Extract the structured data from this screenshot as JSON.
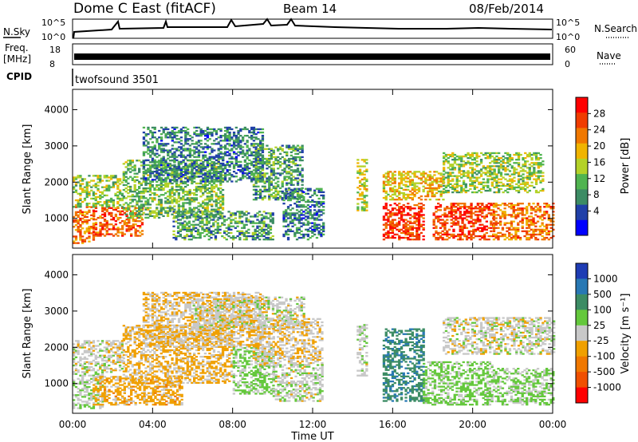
{
  "header": {
    "station": "Dome C East (fitACF)",
    "beam": "Beam 14",
    "date": "08/Feb/2014"
  },
  "strip": {
    "nsky_label": "N.Sky",
    "nsky_ticks": [
      "10^5",
      "10^0"
    ],
    "nsearch_label": "N.Search",
    "nsearch_ticks": [
      "10^5",
      "10^0"
    ],
    "freq_label": [
      "Freq.",
      "[MHz]"
    ],
    "freq_ticks": [
      "18",
      "8"
    ],
    "nave_label": "Nave",
    "nave_ticks": [
      "60",
      "0"
    ],
    "cpid_label": "CPID",
    "program": "twofsound 3501"
  },
  "colors": {
    "power": [
      "#0000ff",
      "#2040a8",
      "#3c8c64",
      "#50b450",
      "#b4d228",
      "#f0b400",
      "#f07800",
      "#f03c00",
      "#ff0000"
    ],
    "velocity": [
      "#1e3cb4",
      "#2878b4",
      "#3c8c64",
      "#64c83c",
      "#c8c8c8",
      "#f0a000",
      "#f07800",
      "#f05000",
      "#ff0000"
    ]
  },
  "chart_data": [
    {
      "type": "heatmap",
      "name": "power",
      "ylabel": "Slant Range [km]",
      "ylim": [
        180,
        4560
      ],
      "yticks": [
        "1000",
        "2000",
        "3000",
        "4000"
      ],
      "xlim": [
        0,
        24
      ],
      "colorbar_label": "Power [dB]",
      "colorbar_ticks": [
        "28",
        "24",
        "20",
        "16",
        "12",
        "8",
        "4"
      ],
      "colorbar_range": [
        0,
        30
      ],
      "regions": [
        {
          "t0": 0.0,
          "t1": 1.0,
          "r0": 300,
          "r1": 1300,
          "value": 22
        },
        {
          "t0": 0.0,
          "t1": 2.5,
          "r0": 1300,
          "r1": 2200,
          "value": 14
        },
        {
          "t0": 1.0,
          "t1": 3.5,
          "r0": 500,
          "r1": 1300,
          "value": 24
        },
        {
          "t0": 2.5,
          "t1": 7.5,
          "r0": 1000,
          "r1": 2600,
          "value": 12
        },
        {
          "t0": 3.5,
          "t1": 9.5,
          "r0": 2000,
          "r1": 3500,
          "value": 8
        },
        {
          "t0": 5.0,
          "t1": 10.0,
          "r0": 400,
          "r1": 1200,
          "value": 10
        },
        {
          "t0": 9.0,
          "t1": 11.5,
          "r0": 1500,
          "r1": 3000,
          "value": 10
        },
        {
          "t0": 10.5,
          "t1": 12.5,
          "r0": 400,
          "r1": 1800,
          "value": 8
        },
        {
          "t0": 14.2,
          "t1": 14.7,
          "r0": 1200,
          "r1": 2600,
          "value": 16
        },
        {
          "t0": 15.5,
          "t1": 17.5,
          "r0": 400,
          "r1": 1400,
          "value": 26
        },
        {
          "t0": 15.5,
          "t1": 18.5,
          "r0": 1500,
          "r1": 2300,
          "value": 18
        },
        {
          "t0": 18.0,
          "t1": 21.0,
          "r0": 400,
          "r1": 1400,
          "value": 25
        },
        {
          "t0": 18.5,
          "t1": 23.5,
          "r0": 1700,
          "r1": 2800,
          "value": 14
        },
        {
          "t0": 21.0,
          "t1": 24.0,
          "r0": 400,
          "r1": 1400,
          "value": 22
        }
      ]
    },
    {
      "type": "heatmap",
      "name": "velocity",
      "ylabel": "Slant Range [km]",
      "ylim": [
        180,
        4560
      ],
      "yticks": [
        "1000",
        "2000",
        "3000",
        "4000"
      ],
      "xlabel": "Time UT",
      "xlim": [
        0,
        24
      ],
      "xticks": [
        "00:00",
        "04:00",
        "08:00",
        "12:00",
        "16:00",
        "20:00",
        "00:00"
      ],
      "colorbar_label": "Velocity [m s⁻¹]",
      "colorbar_ticks": [
        "1000",
        "500",
        "100",
        "25",
        "-25",
        "-100",
        "-500",
        "-1000"
      ],
      "colorbar_range": [
        -1200,
        1200
      ],
      "regions": [
        {
          "t0": 0.0,
          "t1": 1.5,
          "r0": 300,
          "r1": 1300,
          "value": 120
        },
        {
          "t0": 0.0,
          "t1": 2.5,
          "r0": 1300,
          "r1": 2200,
          "value": 0
        },
        {
          "t0": 1.0,
          "t1": 5.5,
          "r0": 400,
          "r1": 1200,
          "value": -250
        },
        {
          "t0": 2.5,
          "t1": 8.0,
          "r0": 1000,
          "r1": 2600,
          "value": -200
        },
        {
          "t0": 3.5,
          "t1": 9.5,
          "r0": 2000,
          "r1": 3500,
          "value": -120
        },
        {
          "t0": 6.0,
          "t1": 11.5,
          "r0": 2500,
          "r1": 3400,
          "value": 0
        },
        {
          "t0": 8.0,
          "t1": 10.0,
          "r0": 700,
          "r1": 2000,
          "value": 200
        },
        {
          "t0": 9.0,
          "t1": 12.5,
          "r0": 1500,
          "r1": 2800,
          "value": -80
        },
        {
          "t0": 10.0,
          "t1": 12.5,
          "r0": 500,
          "r1": 1500,
          "value": 30
        },
        {
          "t0": 14.2,
          "t1": 14.7,
          "r0": 1200,
          "r1": 2600,
          "value": 50
        },
        {
          "t0": 15.5,
          "t1": 17.5,
          "r0": 500,
          "r1": 2500,
          "value": 600
        },
        {
          "t0": 17.5,
          "t1": 21.0,
          "r0": 400,
          "r1": 1600,
          "value": 200
        },
        {
          "t0": 18.5,
          "t1": 24.0,
          "r0": 1800,
          "r1": 2800,
          "value": 0
        },
        {
          "t0": 21.0,
          "t1": 24.0,
          "r0": 400,
          "r1": 1400,
          "value": 180
        }
      ]
    }
  ]
}
